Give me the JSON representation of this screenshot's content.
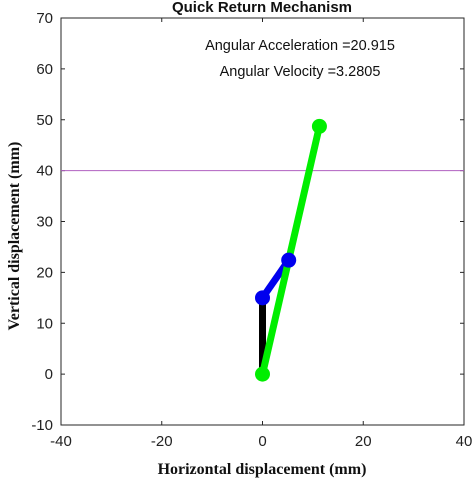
{
  "chart_data": {
    "type": "line",
    "title": "Quick Return Mechanism",
    "xlabel": "Horizontal displacement (mm)",
    "ylabel": "Vertical displacement (mm)",
    "xlim": [
      -40,
      40
    ],
    "ylim": [
      -10,
      70
    ],
    "xticks": [
      "-40",
      "-20",
      "0",
      "20",
      "40"
    ],
    "yticks": [
      "-10",
      "0",
      "10",
      "20",
      "30",
      "40",
      "50",
      "60",
      "70"
    ],
    "grid": false,
    "annotations": [
      "Angular Acceleration =20.915",
      "Angular Velocity =3.2805"
    ],
    "reference_line": {
      "y": 40,
      "color": "#b060c0"
    },
    "links": [
      {
        "color": "#000000",
        "points": [
          [
            0,
            0
          ],
          [
            0,
            15
          ]
        ]
      },
      {
        "color": "#0000ee",
        "points": [
          [
            0,
            15
          ],
          [
            5.2,
            22.4
          ]
        ]
      },
      {
        "color": "#00ee00",
        "points": [
          [
            0,
            0
          ],
          [
            11.3,
            48.7
          ]
        ]
      }
    ],
    "joints": [
      {
        "color": "#0000ee",
        "point": [
          0,
          15
        ]
      },
      {
        "color": "#0000ee",
        "point": [
          5.2,
          22.4
        ]
      },
      {
        "color": "#00ee00",
        "point": [
          0,
          0
        ]
      },
      {
        "color": "#00ee00",
        "point": [
          11.3,
          48.7
        ]
      }
    ]
  }
}
